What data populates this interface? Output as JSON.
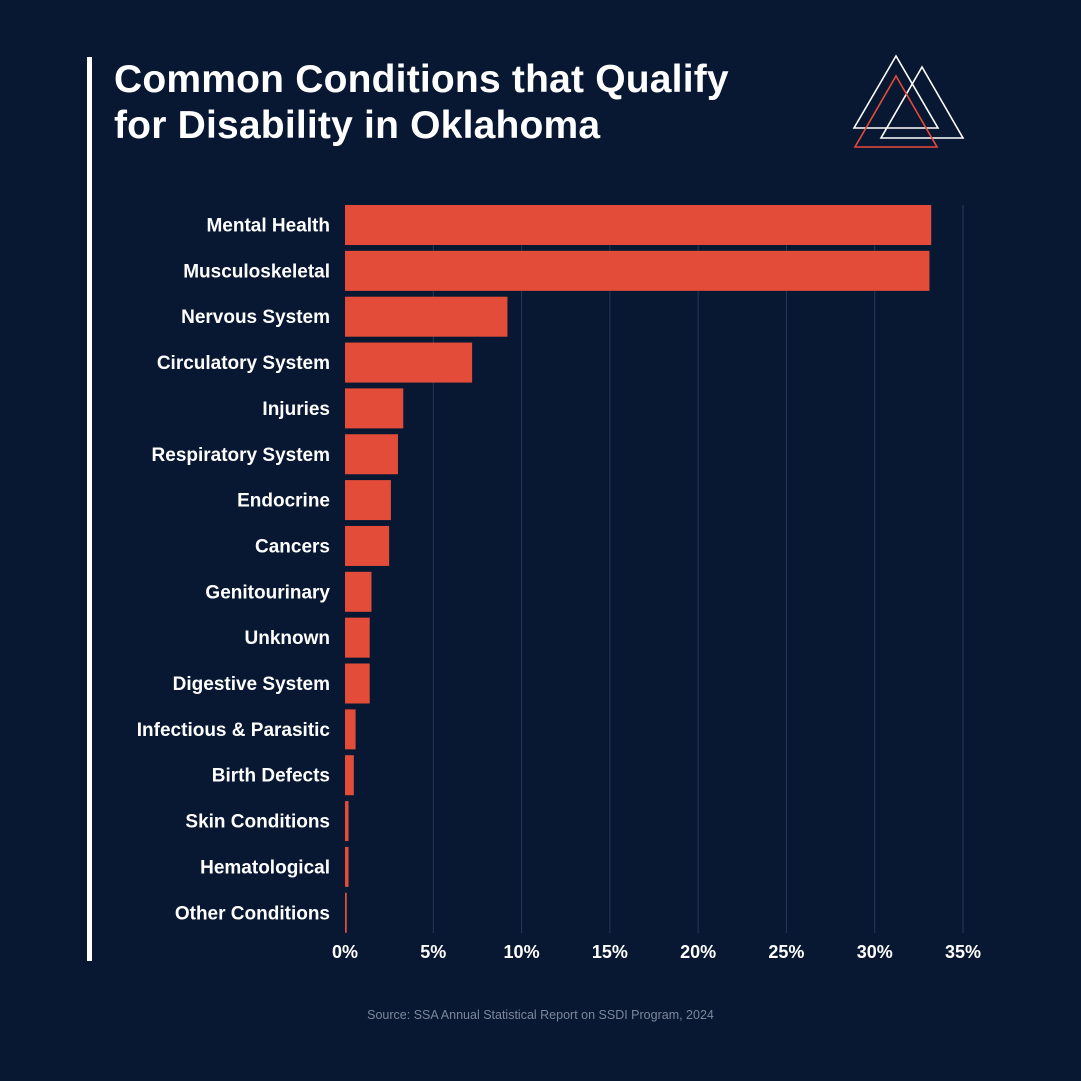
{
  "title_lines": [
    "Common Conditions that Qualify",
    "for Disability in Oklahoma"
  ],
  "source": "Source: SSA Annual Statistical Report on SSDI Program, 2024",
  "logo_icon": "triangles-logo-icon",
  "colors": {
    "background": "#081832",
    "bar": "#e44c3a",
    "text": "#ffffff",
    "grid": "#27385a",
    "logo_outline": "#ffffff",
    "logo_accent": "#e44c3a",
    "source_text": "#7c879c"
  },
  "chart_data": {
    "type": "bar",
    "orientation": "horizontal",
    "title": "Common Conditions that Qualify for Disability in Oklahoma",
    "xlabel": "",
    "ylabel": "",
    "xlim": [
      0,
      35
    ],
    "x_ticks": [
      0,
      5,
      10,
      15,
      20,
      25,
      30,
      35
    ],
    "x_tick_labels": [
      "0%",
      "5%",
      "10%",
      "15%",
      "20%",
      "25%",
      "30%",
      "35%"
    ],
    "grid": "vertical",
    "legend": "none",
    "categories": [
      "Mental Health",
      "Musculoskeletal",
      "Nervous System",
      "Circulatory System",
      "Injuries",
      "Respiratory System",
      "Endocrine",
      "Cancers",
      "Genitourinary",
      "Unknown",
      "Digestive System",
      "Infectious & Parasitic",
      "Birth Defects",
      "Skin Conditions",
      "Hematological",
      "Other Conditions"
    ],
    "values": [
      33.2,
      33.1,
      9.2,
      7.2,
      3.3,
      3.0,
      2.6,
      2.5,
      1.5,
      1.4,
      1.4,
      0.6,
      0.5,
      0.2,
      0.2,
      0.1
    ]
  }
}
